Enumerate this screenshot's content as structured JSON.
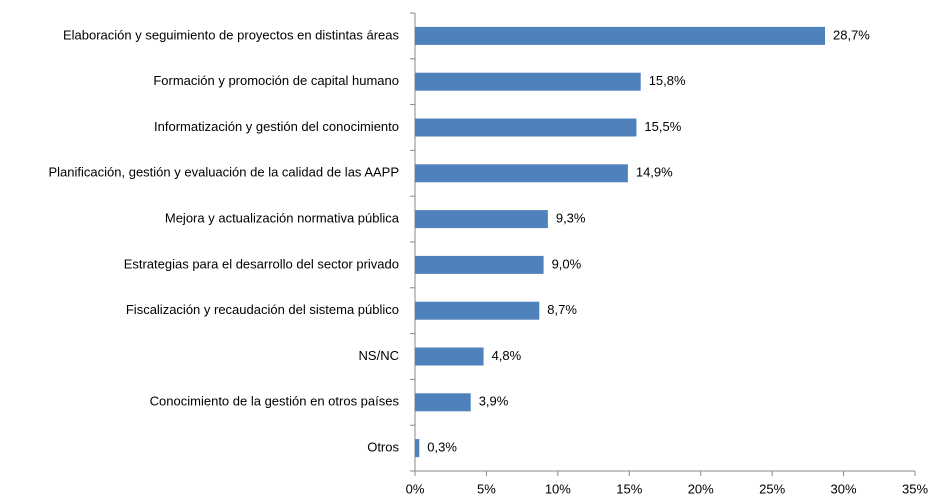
{
  "chart_data": {
    "type": "hbar",
    "categories": [
      "Elaboración y seguimiento de proyectos en distintas áreas",
      "Formación y promoción de capital humano",
      "Informatización y gestión del conocimiento",
      "Planificación, gestión y evaluación de la calidad de las AAPP",
      "Mejora y actualización normativa pública",
      "Estrategias para el desarrollo del sector privado",
      "Fiscalización y recaudación del sistema público",
      "NS/NC",
      "Conocimiento de la gestión en otros países",
      "Otros"
    ],
    "values": [
      28.7,
      15.8,
      15.5,
      14.9,
      9.3,
      9.0,
      8.7,
      4.8,
      3.9,
      0.3
    ],
    "value_labels": [
      "28,7%",
      "15,8%",
      "15,5%",
      "14,9%",
      "9,3%",
      "9,0%",
      "8,7%",
      "4,8%",
      "3,9%",
      "0,3%"
    ],
    "color": "#4f81bd",
    "xlim": [
      0,
      35
    ],
    "xticks": [
      {
        "value": 0,
        "label": "0%"
      },
      {
        "value": 5,
        "label": "5%"
      },
      {
        "value": 10,
        "label": "10%"
      },
      {
        "value": 15,
        "label": "15%"
      },
      {
        "value": 20,
        "label": "20%"
      },
      {
        "value": 25,
        "label": "25%"
      },
      {
        "value": 30,
        "label": "30%"
      },
      {
        "value": 35,
        "label": "35%"
      }
    ],
    "grid": false
  }
}
